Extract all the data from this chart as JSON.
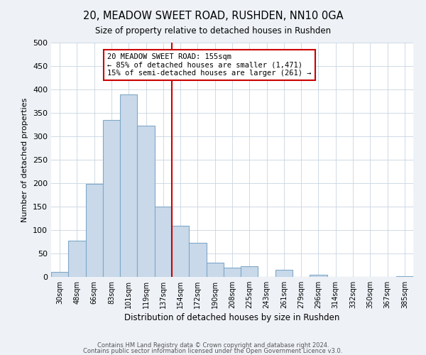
{
  "title": "20, MEADOW SWEET ROAD, RUSHDEN, NN10 0GA",
  "subtitle": "Size of property relative to detached houses in Rushden",
  "xlabel": "Distribution of detached houses by size in Rushden",
  "ylabel": "Number of detached properties",
  "bar_labels": [
    "30sqm",
    "48sqm",
    "66sqm",
    "83sqm",
    "101sqm",
    "119sqm",
    "137sqm",
    "154sqm",
    "172sqm",
    "190sqm",
    "208sqm",
    "225sqm",
    "243sqm",
    "261sqm",
    "279sqm",
    "296sqm",
    "314sqm",
    "332sqm",
    "350sqm",
    "367sqm",
    "385sqm"
  ],
  "bar_values": [
    10,
    78,
    198,
    335,
    390,
    323,
    150,
    109,
    73,
    30,
    19,
    22,
    0,
    15,
    0,
    5,
    0,
    0,
    0,
    0,
    2
  ],
  "bar_color": "#c9d9ea",
  "bar_edge_color": "#7fa8c8",
  "vline_color": "#cc0000",
  "vline_x_idx": 7,
  "annotation_title": "20 MEADOW SWEET ROAD: 155sqm",
  "annotation_line1": "← 85% of detached houses are smaller (1,471)",
  "annotation_line2": "15% of semi-detached houses are larger (261) →",
  "annotation_box_color": "#cc0000",
  "ylim": [
    0,
    500
  ],
  "yticks": [
    0,
    50,
    100,
    150,
    200,
    250,
    300,
    350,
    400,
    450,
    500
  ],
  "footnote1": "Contains HM Land Registry data © Crown copyright and database right 2024.",
  "footnote2": "Contains public sector information licensed under the Open Government Licence v3.0.",
  "bg_color": "#eef2f7",
  "plot_bg_color": "#ffffff",
  "grid_color": "#c8d4e0"
}
